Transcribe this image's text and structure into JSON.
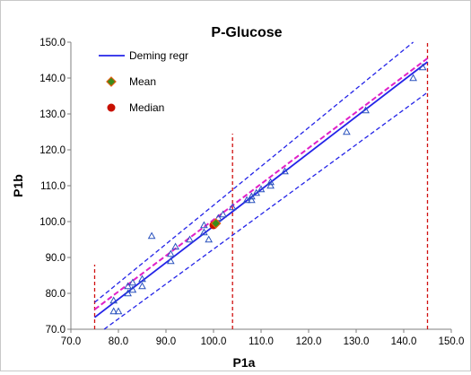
{
  "colors": {
    "regression": "#2424e8",
    "identity": "#e020c8",
    "limits": "#d01010",
    "points": "#2a52be",
    "mean_fill": "#3a8a1a",
    "mean_edge": "#e06010",
    "median_fill": "#c81000"
  },
  "chart_data": {
    "type": "scatter",
    "title": "P-Glucose",
    "xlabel": "P1a",
    "ylabel": "P1b",
    "xlim": [
      70,
      150
    ],
    "ylim": [
      70,
      150
    ],
    "x_ticks": [
      "70.0",
      "80.0",
      "90.0",
      "100.0",
      "110.0",
      "120.0",
      "130.0",
      "140.0",
      "150.0"
    ],
    "y_ticks": [
      "70.0",
      "80.0",
      "90.0",
      "100.0",
      "110.0",
      "120.0",
      "130.0",
      "140.0",
      "150.0"
    ],
    "grid": false,
    "legend_position": "top-left",
    "legend": [
      {
        "label": "Deming regr",
        "marker": "line"
      },
      {
        "label": "Mean",
        "marker": "diamond"
      },
      {
        "label": "Median",
        "marker": "circle"
      }
    ],
    "deming_line": {
      "x": [
        75,
        145
      ],
      "y": [
        73.3,
        144.5
      ]
    },
    "confidence_band_upper": {
      "x": [
        75,
        142
      ],
      "y": [
        77.5,
        150
      ]
    },
    "confidence_band_lower": {
      "x": [
        77,
        145
      ],
      "y": [
        70,
        136
      ]
    },
    "identity_line": {
      "x": [
        75,
        145
      ],
      "y": [
        75.5,
        145.5
      ]
    },
    "vertical_limits": [
      {
        "x": 75,
        "y": [
          70,
          88
        ]
      },
      {
        "x": 104,
        "y": [
          70,
          124.5
        ]
      },
      {
        "x": 145,
        "y": [
          70,
          150
        ]
      }
    ],
    "points": [
      {
        "x": 79,
        "y": 78
      },
      {
        "x": 79,
        "y": 75
      },
      {
        "x": 80,
        "y": 75
      },
      {
        "x": 82,
        "y": 82
      },
      {
        "x": 82,
        "y": 80
      },
      {
        "x": 83,
        "y": 83
      },
      {
        "x": 83,
        "y": 81
      },
      {
        "x": 85,
        "y": 82
      },
      {
        "x": 85,
        "y": 84
      },
      {
        "x": 87,
        "y": 96
      },
      {
        "x": 91,
        "y": 91
      },
      {
        "x": 91,
        "y": 89
      },
      {
        "x": 92,
        "y": 93
      },
      {
        "x": 95,
        "y": 95
      },
      {
        "x": 98,
        "y": 99
      },
      {
        "x": 98,
        "y": 97
      },
      {
        "x": 99,
        "y": 95
      },
      {
        "x": 101,
        "y": 101
      },
      {
        "x": 102,
        "y": 102
      },
      {
        "x": 104,
        "y": 104
      },
      {
        "x": 107,
        "y": 106
      },
      {
        "x": 108,
        "y": 107
      },
      {
        "x": 108,
        "y": 106
      },
      {
        "x": 109,
        "y": 108
      },
      {
        "x": 110,
        "y": 109
      },
      {
        "x": 112,
        "y": 111
      },
      {
        "x": 112,
        "y": 110
      },
      {
        "x": 115,
        "y": 114
      },
      {
        "x": 128,
        "y": 125
      },
      {
        "x": 132,
        "y": 131
      },
      {
        "x": 142,
        "y": 140
      },
      {
        "x": 144,
        "y": 143
      }
    ],
    "mean": {
      "x": 100.5,
      "y": 99.5
    },
    "median": {
      "x": 100,
      "y": 99
    }
  }
}
